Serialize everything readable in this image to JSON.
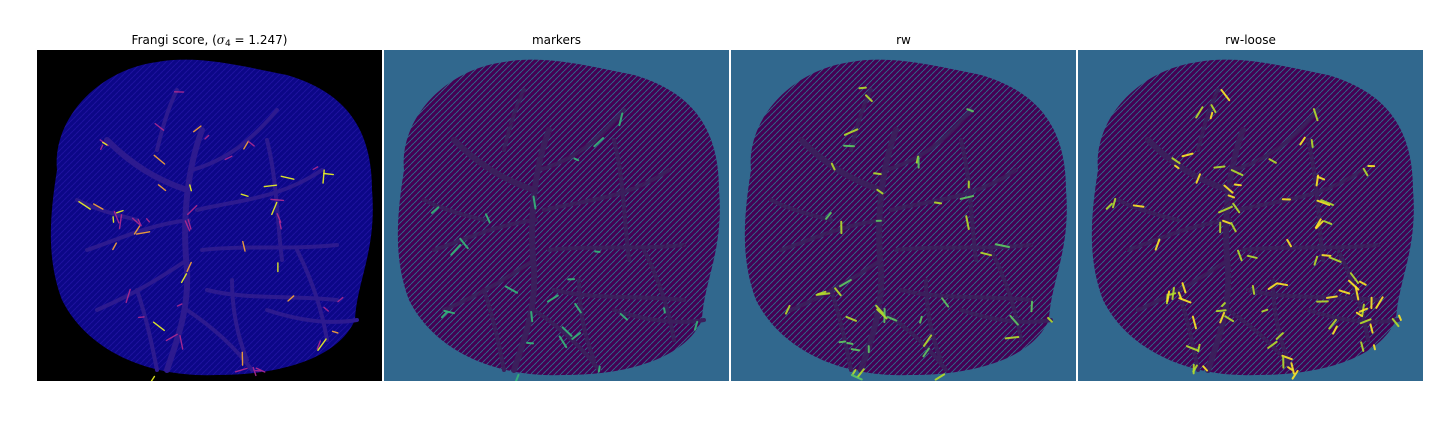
{
  "panels": [
    {
      "id": "frangi",
      "title_prefix": "Frangi score, (",
      "title_symbol": "σ",
      "title_subscript": "4",
      "title_suffix": " = 1.247)",
      "background": "#000000",
      "blob_color": "#0c0787",
      "vessel_color": "#2d1a8f",
      "highlight_colors": [
        "#b12a90",
        "#fca636",
        "#f0f921"
      ]
    },
    {
      "id": "markers",
      "title": "markers",
      "background": "#31688e",
      "blob_color": "#440154",
      "vessel_color": "#3b1f5c",
      "highlight_colors": [
        "#35b779"
      ]
    },
    {
      "id": "rw",
      "title": "rw",
      "background": "#31688e",
      "blob_color": "#440154",
      "vessel_color": "#3b1f5c",
      "highlight_colors": [
        "#5ec962",
        "#b5de2b"
      ]
    },
    {
      "id": "rw-loose",
      "title": "rw-loose",
      "background": "#31688e",
      "blob_color": "#440154",
      "vessel_color": "#3b1f5c",
      "highlight_colors": [
        "#b5de2b",
        "#fde725"
      ]
    }
  ]
}
